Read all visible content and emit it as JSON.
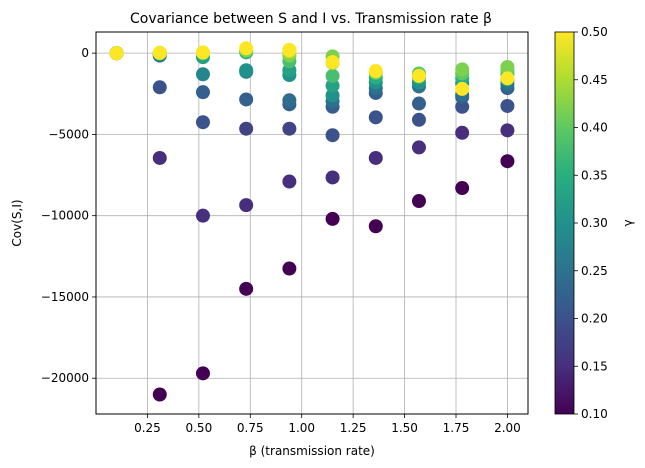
{
  "chart_data": {
    "type": "scatter",
    "title": "Covariance between S and I vs. Transmission rate β",
    "xlabel": "β (transmission rate)",
    "ylabel": "Cov(S,I)",
    "colorbar_label": "γ",
    "colormap": "viridis",
    "grid": true,
    "xlim": [
      0.0,
      2.1
    ],
    "ylim": [
      -22200,
      1300
    ],
    "xticks": [
      0.25,
      0.5,
      0.75,
      1.0,
      1.25,
      1.5,
      1.75,
      2.0
    ],
    "xtick_labels": [
      "0.25",
      "0.50",
      "0.75",
      "1.00",
      "1.25",
      "1.50",
      "1.75",
      "2.00"
    ],
    "yticks": [
      0,
      -5000,
      -10000,
      -15000,
      -20000
    ],
    "ytick_labels": [
      "0",
      "−5000",
      "−10000",
      "−15000",
      "−20000"
    ],
    "colorbar_range": [
      0.1,
      0.5
    ],
    "colorbar_ticks": [
      0.1,
      0.15,
      0.2,
      0.25,
      0.3,
      0.35,
      0.4,
      0.45,
      0.5
    ],
    "colorbar_tick_labels": [
      "0.10",
      "0.15",
      "0.20",
      "0.25",
      "0.30",
      "0.35",
      "0.40",
      "0.45",
      "0.50"
    ],
    "points": [
      {
        "x": 0.1,
        "y": 0,
        "c": 0.1
      },
      {
        "x": 0.1,
        "y": 0,
        "c": 0.15
      },
      {
        "x": 0.1,
        "y": 0,
        "c": 0.2
      },
      {
        "x": 0.1,
        "y": 0,
        "c": 0.25
      },
      {
        "x": 0.1,
        "y": 0,
        "c": 0.3
      },
      {
        "x": 0.1,
        "y": 0,
        "c": 0.35
      },
      {
        "x": 0.1,
        "y": 0,
        "c": 0.4
      },
      {
        "x": 0.1,
        "y": 0,
        "c": 0.45
      },
      {
        "x": 0.1,
        "y": 0,
        "c": 0.5
      },
      {
        "x": 0.31,
        "y": -21000,
        "c": 0.1
      },
      {
        "x": 0.31,
        "y": -6450,
        "c": 0.15
      },
      {
        "x": 0.31,
        "y": -2100,
        "c": 0.2
      },
      {
        "x": 0.31,
        "y": -150,
        "c": 0.25
      },
      {
        "x": 0.31,
        "y": -50,
        "c": 0.3
      },
      {
        "x": 0.31,
        "y": 0,
        "c": 0.35
      },
      {
        "x": 0.31,
        "y": 0,
        "c": 0.4
      },
      {
        "x": 0.31,
        "y": 0,
        "c": 0.45
      },
      {
        "x": 0.31,
        "y": 30,
        "c": 0.5
      },
      {
        "x": 0.52,
        "y": -19700,
        "c": 0.1
      },
      {
        "x": 0.52,
        "y": -10000,
        "c": 0.15
      },
      {
        "x": 0.52,
        "y": -4250,
        "c": 0.2
      },
      {
        "x": 0.52,
        "y": -2400,
        "c": 0.22
      },
      {
        "x": 0.52,
        "y": -1300,
        "c": 0.28
      },
      {
        "x": 0.52,
        "y": -250,
        "c": 0.33
      },
      {
        "x": 0.52,
        "y": 0,
        "c": 0.4
      },
      {
        "x": 0.52,
        "y": 20,
        "c": 0.45
      },
      {
        "x": 0.52,
        "y": 50,
        "c": 0.5
      },
      {
        "x": 0.73,
        "y": -14500,
        "c": 0.1
      },
      {
        "x": 0.73,
        "y": -9350,
        "c": 0.15
      },
      {
        "x": 0.73,
        "y": -4650,
        "c": 0.18
      },
      {
        "x": 0.73,
        "y": -2850,
        "c": 0.22
      },
      {
        "x": 0.73,
        "y": -1150,
        "c": 0.28
      },
      {
        "x": 0.73,
        "y": -1050,
        "c": 0.3
      },
      {
        "x": 0.73,
        "y": 50,
        "c": 0.35
      },
      {
        "x": 0.73,
        "y": 150,
        "c": 0.42
      },
      {
        "x": 0.73,
        "y": 300,
        "c": 0.5
      },
      {
        "x": 0.94,
        "y": -13250,
        "c": 0.1
      },
      {
        "x": 0.94,
        "y": -7900,
        "c": 0.15
      },
      {
        "x": 0.94,
        "y": -4650,
        "c": 0.18
      },
      {
        "x": 0.94,
        "y": -3150,
        "c": 0.22
      },
      {
        "x": 0.94,
        "y": -2900,
        "c": 0.24
      },
      {
        "x": 0.94,
        "y": -1350,
        "c": 0.3
      },
      {
        "x": 0.94,
        "y": -1050,
        "c": 0.33
      },
      {
        "x": 0.94,
        "y": -500,
        "c": 0.38
      },
      {
        "x": 0.94,
        "y": -150,
        "c": 0.42
      },
      {
        "x": 0.94,
        "y": 100,
        "c": 0.46
      },
      {
        "x": 0.94,
        "y": 200,
        "c": 0.5
      },
      {
        "x": 1.15,
        "y": -10200,
        "c": 0.1
      },
      {
        "x": 1.15,
        "y": -7650,
        "c": 0.15
      },
      {
        "x": 1.15,
        "y": -5050,
        "c": 0.2
      },
      {
        "x": 1.15,
        "y": -3300,
        "c": 0.22
      },
      {
        "x": 1.15,
        "y": -2950,
        "c": 0.25
      },
      {
        "x": 1.15,
        "y": -2600,
        "c": 0.3
      },
      {
        "x": 1.15,
        "y": -2000,
        "c": 0.33
      },
      {
        "x": 1.15,
        "y": -1400,
        "c": 0.38
      },
      {
        "x": 1.15,
        "y": -600,
        "c": 0.45
      },
      {
        "x": 1.15,
        "y": -200,
        "c": 0.42
      },
      {
        "x": 1.15,
        "y": -550,
        "c": 0.5
      },
      {
        "x": 1.36,
        "y": -10650,
        "c": 0.1
      },
      {
        "x": 1.36,
        "y": -6450,
        "c": 0.15
      },
      {
        "x": 1.36,
        "y": -3950,
        "c": 0.2
      },
      {
        "x": 1.36,
        "y": -2450,
        "c": 0.22
      },
      {
        "x": 1.36,
        "y": -2150,
        "c": 0.25
      },
      {
        "x": 1.36,
        "y": -1800,
        "c": 0.3
      },
      {
        "x": 1.36,
        "y": -1500,
        "c": 0.35
      },
      {
        "x": 1.36,
        "y": -1200,
        "c": 0.42
      },
      {
        "x": 1.36,
        "y": -1100,
        "c": 0.5
      },
      {
        "x": 1.57,
        "y": -9100,
        "c": 0.1
      },
      {
        "x": 1.57,
        "y": -5800,
        "c": 0.15
      },
      {
        "x": 1.57,
        "y": -4100,
        "c": 0.2
      },
      {
        "x": 1.57,
        "y": -3100,
        "c": 0.22
      },
      {
        "x": 1.57,
        "y": -2050,
        "c": 0.25
      },
      {
        "x": 1.57,
        "y": -1800,
        "c": 0.3
      },
      {
        "x": 1.57,
        "y": -1500,
        "c": 0.35
      },
      {
        "x": 1.57,
        "y": -1250,
        "c": 0.4
      },
      {
        "x": 1.57,
        "y": -1400,
        "c": 0.5
      },
      {
        "x": 1.78,
        "y": -8300,
        "c": 0.1
      },
      {
        "x": 1.78,
        "y": -4900,
        "c": 0.15
      },
      {
        "x": 1.78,
        "y": -3300,
        "c": 0.2
      },
      {
        "x": 1.78,
        "y": -2700,
        "c": 0.22
      },
      {
        "x": 1.78,
        "y": -2550,
        "c": 0.25
      },
      {
        "x": 1.78,
        "y": -1850,
        "c": 0.3
      },
      {
        "x": 1.78,
        "y": -1550,
        "c": 0.35
      },
      {
        "x": 1.78,
        "y": -1250,
        "c": 0.4
      },
      {
        "x": 1.78,
        "y": -1000,
        "c": 0.42
      },
      {
        "x": 1.78,
        "y": -2200,
        "c": 0.5
      },
      {
        "x": 2.0,
        "y": -6650,
        "c": 0.1
      },
      {
        "x": 2.0,
        "y": -4750,
        "c": 0.15
      },
      {
        "x": 2.0,
        "y": -3250,
        "c": 0.2
      },
      {
        "x": 2.0,
        "y": -2150,
        "c": 0.22
      },
      {
        "x": 2.0,
        "y": -1900,
        "c": 0.25
      },
      {
        "x": 2.0,
        "y": -1650,
        "c": 0.3
      },
      {
        "x": 2.0,
        "y": -1300,
        "c": 0.35
      },
      {
        "x": 2.0,
        "y": -1050,
        "c": 0.4
      },
      {
        "x": 2.0,
        "y": -850,
        "c": 0.42
      },
      {
        "x": 2.0,
        "y": -1550,
        "c": 0.5
      }
    ]
  }
}
